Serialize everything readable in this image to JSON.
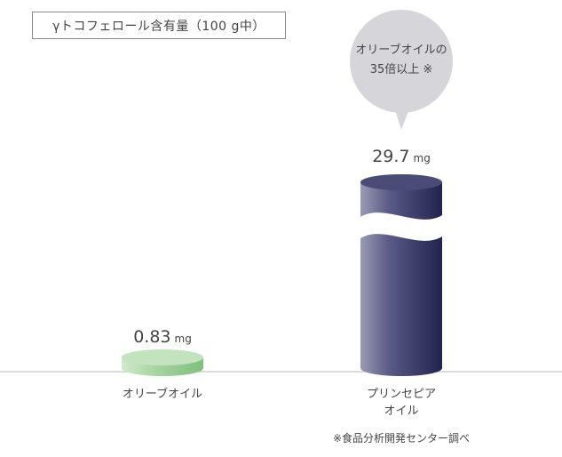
{
  "chart_data": {
    "type": "bar",
    "title": "γトコフェロール含有量（100 g中）",
    "categories": [
      "オリーブオイル",
      "プリンセピア\nオイル"
    ],
    "series": [
      {
        "values": [
          0.83,
          29.7
        ]
      }
    ],
    "value_labels": [
      "0.83",
      "29.7"
    ],
    "unit": "mg",
    "colors": {
      "olive": "#a8d5a3",
      "princepia": "#2f2f5f"
    },
    "axis_broken": true,
    "callout": "オリーブオイルの\n35倍以上 ※",
    "footnote": "※食品分析開発センター調べ"
  }
}
